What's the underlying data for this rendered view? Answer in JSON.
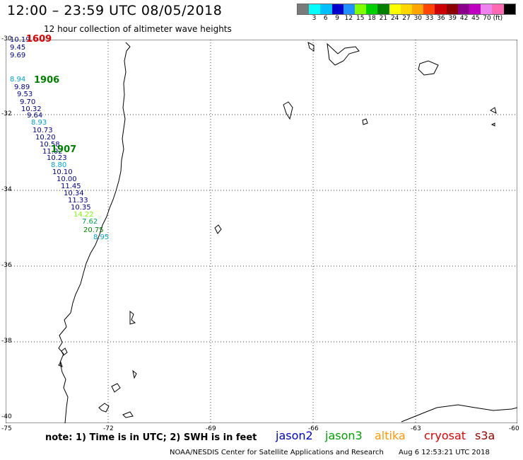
{
  "header": {
    "title": "12:00 – 23:59 UTC 08/05/2018",
    "subtitle": "12 hour collection of altimeter wave heights"
  },
  "scale": {
    "colors": [
      "#7a7a7a",
      "#00ffff",
      "#00bfff",
      "#0000cd",
      "#1e90ff",
      "#7fff00",
      "#00d000",
      "#008000",
      "#ffff00",
      "#ffd700",
      "#ffa500",
      "#ff4500",
      "#cc0000",
      "#8b0000",
      "#8b008b",
      "#c000c0",
      "#ee82ee",
      "#ff69b4",
      "#000000"
    ],
    "ticks": [
      "3",
      "6",
      "9",
      "12",
      "15",
      "18",
      "21",
      "24",
      "27",
      "30",
      "33",
      "36",
      "39",
      "42",
      "45",
      "70 (ft)"
    ]
  },
  "axes": {
    "lat": [
      "-30",
      "-32",
      "-34",
      "-36",
      "-38",
      "-40"
    ],
    "lon": [
      "-75",
      "-72",
      "-69",
      "-66",
      "-63",
      "-60"
    ]
  },
  "passes": [
    {
      "id": "1609",
      "color": "#e00000"
    },
    {
      "id": "1906",
      "color": "#008000"
    },
    {
      "id": "1907",
      "color": "#008000"
    }
  ],
  "observations": [
    {
      "value": "10.19",
      "color": "#00008b"
    },
    {
      "value": "9.45",
      "color": "#00008b"
    },
    {
      "value": "9.69",
      "color": "#00008b"
    },
    {
      "value": "8.94",
      "color": "#00a0d0"
    },
    {
      "value": "9.89",
      "color": "#00008b"
    },
    {
      "value": "9.53",
      "color": "#00008b"
    },
    {
      "value": "9.70",
      "color": "#00008b"
    },
    {
      "value": "10.32",
      "color": "#00008b"
    },
    {
      "value": "9.64",
      "color": "#00008b"
    },
    {
      "value": "8.93",
      "color": "#00a0d0"
    },
    {
      "value": "10.73",
      "color": "#00008b"
    },
    {
      "value": "10.20",
      "color": "#00008b"
    },
    {
      "value": "10.58",
      "color": "#00008b"
    },
    {
      "value": "11.02",
      "color": "#00008b"
    },
    {
      "value": "10.23",
      "color": "#00008b"
    },
    {
      "value": "8.80",
      "color": "#00a0d0"
    },
    {
      "value": "10.10",
      "color": "#00008b"
    },
    {
      "value": "10.00",
      "color": "#00008b"
    },
    {
      "value": "11.45",
      "color": "#00008b"
    },
    {
      "value": "10.34",
      "color": "#00008b"
    },
    {
      "value": "11.33",
      "color": "#00008b"
    },
    {
      "value": "10.35",
      "color": "#00008b"
    },
    {
      "value": "14.22",
      "color": "#7fff00"
    },
    {
      "value": "7.62",
      "color": "#00a050"
    },
    {
      "value": "20.75",
      "color": "#008000"
    },
    {
      "value": "8.95",
      "color": "#00a0d0"
    }
  ],
  "footer": {
    "note": "note:  1) Time is in UTC;  2) SWH is in feet",
    "satellites": [
      {
        "name": "jason2",
        "color": "#0000cd"
      },
      {
        "name": "jason3",
        "color": "#00a000"
      },
      {
        "name": "altika",
        "color": "#ff9900"
      },
      {
        "name": "cryosat",
        "color": "#e00000"
      },
      {
        "name": "s3a",
        "color": "#a00000"
      }
    ],
    "credit": "NOAA/NESDIS Center for Satellite Applications and Research",
    "timestamp": "Aug  6 12:53:21 UTC 2018"
  }
}
